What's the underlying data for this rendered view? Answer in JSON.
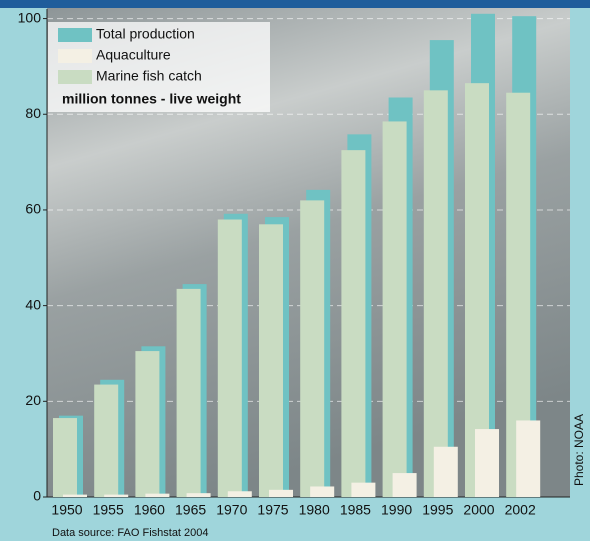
{
  "chart_data": {
    "type": "bar",
    "categories": [
      "1950",
      "1955",
      "1960",
      "1965",
      "1970",
      "1975",
      "1980",
      "1985",
      "1990",
      "1995",
      "2000",
      "2002"
    ],
    "series": [
      {
        "name": "Total production",
        "color": "#6fc2c3",
        "values": [
          17,
          24.5,
          31.5,
          44.5,
          59.2,
          58.5,
          64.2,
          75.8,
          83.5,
          95.5,
          101,
          100.5
        ]
      },
      {
        "name": "Aquaculture",
        "color": "#f4f0e4",
        "values": [
          0.5,
          0.5,
          0.7,
          0.8,
          1.2,
          1.5,
          2.2,
          3,
          5,
          10.5,
          14.2,
          16
        ]
      },
      {
        "name": "Marine fish catch",
        "color": "#c9dcc2",
        "values": [
          16.5,
          23.5,
          30.5,
          43.5,
          58,
          57,
          62,
          72.5,
          78.5,
          85,
          86.5,
          84.5
        ]
      }
    ],
    "units": "million tonnes - live weight",
    "ylim": [
      0,
      102
    ],
    "yticks": [
      0,
      20,
      40,
      60,
      80,
      100
    ],
    "grid": true,
    "source": "Data source: FAO Fishstat 2004",
    "credit": "Photo: NOAA"
  }
}
